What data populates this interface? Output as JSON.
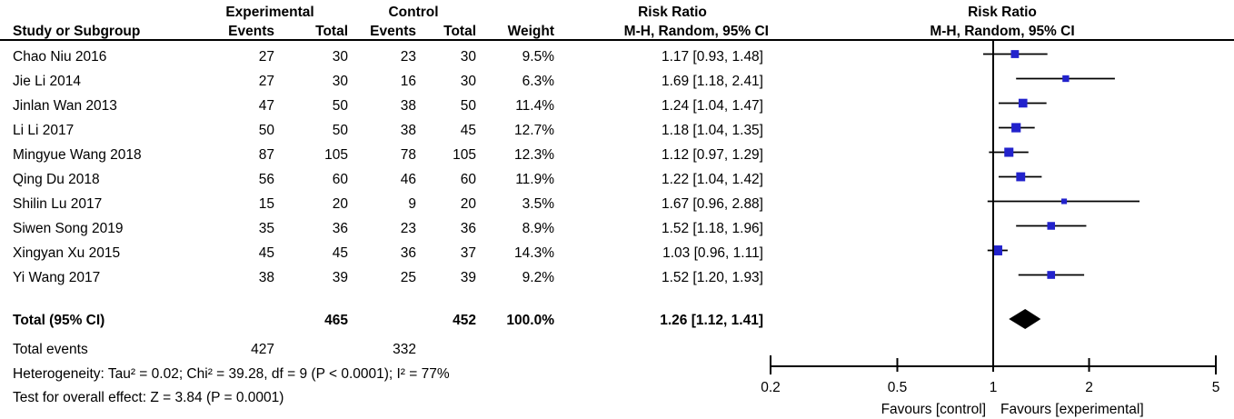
{
  "header": {
    "experimental": "Experimental",
    "control": "Control",
    "risk_ratio_left": "Risk Ratio",
    "risk_ratio_right": "Risk Ratio",
    "study": "Study or Subgroup",
    "events_exp": "Events",
    "total_exp": "Total",
    "events_ctl": "Events",
    "total_ctl": "Total",
    "weight": "Weight",
    "method_left": "M-H, Random, 95% CI",
    "method_right": "M-H, Random, 95% CI"
  },
  "chart_data": {
    "type": "forest",
    "effect_measure": "Risk Ratio",
    "method": "M-H, Random, 95% CI",
    "x_axis": {
      "scale": "log",
      "ticks": [
        "0.2",
        "0.5",
        "1",
        "2",
        "5"
      ],
      "tick_values": [
        0.2,
        0.5,
        1,
        2,
        5
      ],
      "range": [
        0.2,
        5
      ],
      "center": 1
    },
    "studies": [
      {
        "name": "Chao Niu 2016",
        "exp_events": "27",
        "exp_total": "30",
        "ctl_events": "23",
        "ctl_total": "30",
        "weight": "9.5%",
        "weight_pct": 9.5,
        "rr": 1.17,
        "ci_low": 0.93,
        "ci_high": 1.48,
        "label": "1.17 [0.93, 1.48]"
      },
      {
        "name": "Jie Li 2014",
        "exp_events": "27",
        "exp_total": "30",
        "ctl_events": "16",
        "ctl_total": "30",
        "weight": "6.3%",
        "weight_pct": 6.3,
        "rr": 1.69,
        "ci_low": 1.18,
        "ci_high": 2.41,
        "label": "1.69 [1.18, 2.41]"
      },
      {
        "name": "Jinlan Wan 2013",
        "exp_events": "47",
        "exp_total": "50",
        "ctl_events": "38",
        "ctl_total": "50",
        "weight": "11.4%",
        "weight_pct": 11.4,
        "rr": 1.24,
        "ci_low": 1.04,
        "ci_high": 1.47,
        "label": "1.24 [1.04, 1.47]"
      },
      {
        "name": "Li Li 2017",
        "exp_events": "50",
        "exp_total": "50",
        "ctl_events": "38",
        "ctl_total": "45",
        "weight": "12.7%",
        "weight_pct": 12.7,
        "rr": 1.18,
        "ci_low": 1.04,
        "ci_high": 1.35,
        "label": "1.18 [1.04, 1.35]"
      },
      {
        "name": "Mingyue Wang 2018",
        "exp_events": "87",
        "exp_total": "105",
        "ctl_events": "78",
        "ctl_total": "105",
        "weight": "12.3%",
        "weight_pct": 12.3,
        "rr": 1.12,
        "ci_low": 0.97,
        "ci_high": 1.29,
        "label": "1.12 [0.97, 1.29]"
      },
      {
        "name": "Qing Du 2018",
        "exp_events": "56",
        "exp_total": "60",
        "ctl_events": "46",
        "ctl_total": "60",
        "weight": "11.9%",
        "weight_pct": 11.9,
        "rr": 1.22,
        "ci_low": 1.04,
        "ci_high": 1.42,
        "label": "1.22 [1.04, 1.42]"
      },
      {
        "name": "Shilin Lu 2017",
        "exp_events": "15",
        "exp_total": "20",
        "ctl_events": "9",
        "ctl_total": "20",
        "weight": "3.5%",
        "weight_pct": 3.5,
        "rr": 1.67,
        "ci_low": 0.96,
        "ci_high": 2.88,
        "label": "1.67 [0.96, 2.88]"
      },
      {
        "name": "Siwen Song 2019",
        "exp_events": "35",
        "exp_total": "36",
        "ctl_events": "23",
        "ctl_total": "36",
        "weight": "8.9%",
        "weight_pct": 8.9,
        "rr": 1.52,
        "ci_low": 1.18,
        "ci_high": 1.96,
        "label": "1.52 [1.18, 1.96]"
      },
      {
        "name": "Xingyan Xu 2015",
        "exp_events": "45",
        "exp_total": "45",
        "ctl_events": "36",
        "ctl_total": "37",
        "weight": "14.3%",
        "weight_pct": 14.3,
        "rr": 1.03,
        "ci_low": 0.96,
        "ci_high": 1.11,
        "label": "1.03 [0.96, 1.11]"
      },
      {
        "name": "Yi Wang 2017",
        "exp_events": "38",
        "exp_total": "39",
        "ctl_events": "25",
        "ctl_total": "39",
        "weight": "9.2%",
        "weight_pct": 9.2,
        "rr": 1.52,
        "ci_low": 1.2,
        "ci_high": 1.93,
        "label": "1.52 [1.20, 1.93]"
      }
    ],
    "total": {
      "name": "Total (95% CI)",
      "exp_total": "465",
      "ctl_total": "452",
      "weight": "100.0%",
      "rr": 1.26,
      "ci_low": 1.12,
      "ci_high": 1.41,
      "label": "1.26 [1.12, 1.41]"
    },
    "total_events": {
      "label": "Total events",
      "exp": "427",
      "ctl": "332"
    },
    "heterogeneity": "Heterogeneity: Tau² = 0.02; Chi² = 39.28, df = 9 (P < 0.0001); I² = 77%",
    "overall_effect": "Test for overall effect: Z = 3.84 (P = 0.0001)",
    "favours_left": "Favours [control]",
    "favours_right": "Favours [experimental]",
    "colors": {
      "square": "#2222cc",
      "ci_line": "#000000",
      "diamond": "#000000",
      "axis": "#000000",
      "text": "#000000"
    }
  }
}
